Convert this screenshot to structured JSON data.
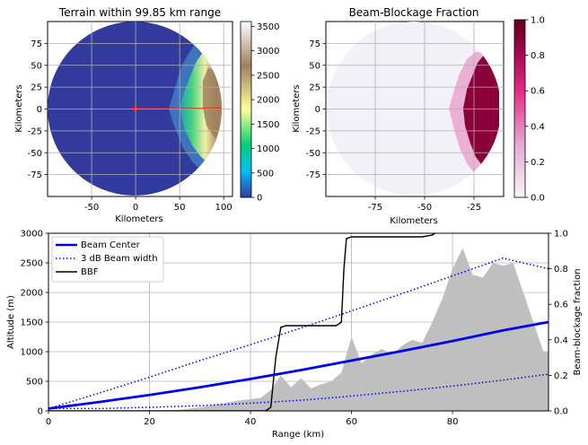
{
  "chart_data": [
    {
      "type": "heatmap",
      "title": "Terrain within 99.85 km range",
      "xlabel": "Kilometers",
      "ylabel": "Kilometers",
      "xticks": [
        -50,
        0,
        50,
        100
      ],
      "yticks": [
        75,
        50,
        25,
        0,
        -25,
        -50,
        -75
      ],
      "xlim": [
        -100,
        110
      ],
      "ylim": [
        -100,
        100
      ],
      "range_km": 99.85,
      "colorbar": {
        "ticks": [
          0,
          500,
          1000,
          1500,
          2000,
          2500,
          3000,
          3500
        ],
        "range": [
          0,
          3600
        ],
        "colors": [
          "#2f3a9c",
          "#00c0ff",
          "#00d070",
          "#ffff99",
          "#a08060",
          "#ffffff"
        ]
      },
      "background_color": "#333a9e",
      "beam_line_color": "#ff0000",
      "radar_site": [
        0,
        0
      ]
    },
    {
      "type": "heatmap",
      "title": "Beam-Blockage Fraction",
      "xlabel": "Kilometers",
      "ylabel": "Kilometers",
      "xticks": [
        -75,
        -50,
        -25
      ],
      "yticks": [
        75,
        50,
        25,
        0,
        -25,
        -50,
        -75
      ],
      "xlim": [
        -100,
        -10
      ],
      "ylim": [
        -100,
        100
      ],
      "colorbar": {
        "ticks": [
          "0.0",
          "0.2",
          "0.4",
          "0.6",
          "0.8",
          "1.0"
        ],
        "range": [
          0,
          1
        ],
        "colors": [
          "#f7f4f9",
          "#e7a8d0",
          "#e7298a",
          "#980043",
          "#67001f"
        ]
      },
      "background_color": "#f3f1f8"
    },
    {
      "type": "line",
      "xlabel": "Range (km)",
      "ylabel": "Altitude (m)",
      "y2label": "Beam-blockage fraction",
      "xlim": [
        0,
        99
      ],
      "ylim": [
        0,
        3000
      ],
      "y2lim": [
        0,
        1
      ],
      "xticks": [
        0,
        20,
        40,
        60,
        80
      ],
      "yticks": [
        0,
        500,
        1000,
        1500,
        2000,
        2500,
        3000
      ],
      "y2ticks": [
        "0.0",
        "0.2",
        "0.4",
        "0.6",
        "0.8",
        "1.0"
      ],
      "grid": true,
      "legend": "top-left",
      "terrain_color": "#bfbfbf",
      "terrain": {
        "x": [
          0,
          20,
          26,
          30,
          34,
          38,
          42,
          44,
          46,
          48,
          50,
          52,
          54,
          56,
          58,
          60,
          62,
          64,
          66,
          68,
          70,
          72,
          74,
          76,
          78,
          80,
          82,
          84,
          86,
          88,
          90,
          92,
          94,
          96,
          98,
          99
        ],
        "y": [
          0,
          0,
          20,
          60,
          120,
          180,
          220,
          350,
          600,
          400,
          550,
          380,
          450,
          500,
          650,
          1250,
          800,
          950,
          1050,
          950,
          1100,
          1200,
          1150,
          1500,
          1900,
          2400,
          2750,
          2300,
          2250,
          2500,
          2450,
          2500,
          2000,
          1500,
          1000,
          1000
        ]
      },
      "series": [
        {
          "name": "Beam Center",
          "color": "#0000ee",
          "style": "solid",
          "x": [
            0,
            10,
            20,
            30,
            40,
            50,
            60,
            70,
            80,
            90,
            99
          ],
          "y": [
            40,
            150,
            270,
            400,
            540,
            690,
            850,
            1010,
            1180,
            1360,
            1500
          ]
        },
        {
          "name": "3 dB Beam width",
          "color": "#0000ee",
          "style": "dotted",
          "x": [
            0,
            10,
            20,
            30,
            40,
            50,
            60,
            70,
            80,
            90,
            99
          ],
          "y": [
            40,
            300,
            570,
            850,
            1120,
            1400,
            1690,
            1980,
            2280,
            2580,
            2400
          ]
        },
        {
          "name": "3 dB Beam width lower",
          "color": "#0000ee",
          "style": "dotted",
          "legend": false,
          "x": [
            0,
            10,
            20,
            30,
            40,
            50,
            60,
            70,
            80,
            90,
            99
          ],
          "y": [
            40,
            40,
            60,
            90,
            130,
            180,
            250,
            330,
            420,
            520,
            620
          ]
        },
        {
          "name": "BBF",
          "color": "#000000",
          "style": "solid",
          "axis": "y2",
          "x": [
            0,
            43,
            44,
            45,
            46,
            47,
            48,
            50,
            52,
            54,
            56,
            57,
            58,
            58.5,
            59,
            60,
            62,
            66,
            70,
            74,
            76,
            76.5
          ],
          "y": [
            0,
            0,
            0.02,
            0.3,
            0.47,
            0.48,
            0.48,
            0.48,
            0.48,
            0.48,
            0.48,
            0.48,
            0.5,
            0.8,
            0.97,
            0.98,
            0.98,
            0.98,
            0.98,
            0.98,
            0.99,
            1.0
          ]
        }
      ]
    }
  ]
}
